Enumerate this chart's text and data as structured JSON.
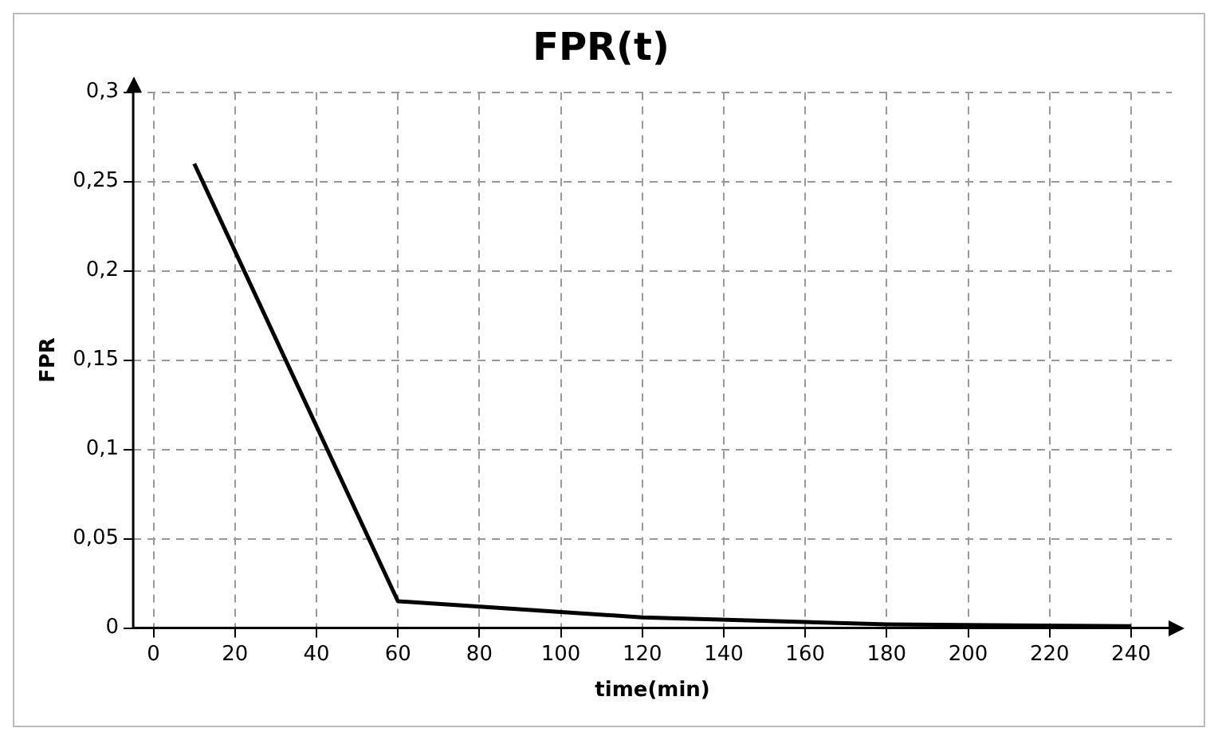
{
  "chart_data": {
    "type": "line",
    "title": "FPR(t)",
    "xlabel": "time(min)",
    "ylabel": "FPR",
    "series": [
      {
        "color": "#000000",
        "x": [
          10,
          60,
          120,
          180,
          240
        ],
        "values": [
          0.26,
          0.015,
          0.006,
          0.002,
          0.001
        ]
      }
    ],
    "xlim": [
      -5,
      250
    ],
    "xticks": [
      0,
      20,
      40,
      60,
      80,
      100,
      120,
      140,
      160,
      180,
      200,
      220,
      240
    ],
    "ylim": [
      0,
      0.3
    ],
    "yticks": [
      0,
      {
        "value": 0.05,
        "label": "0,05"
      },
      {
        "value": 0.1,
        "label": "0,1"
      },
      {
        "value": 0.15,
        "label": "0,15"
      },
      {
        "value": 0.2,
        "label": "0,2"
      },
      {
        "value": 0.25,
        "label": "0,25"
      },
      {
        "value": 0.3,
        "label": "0,3"
      }
    ],
    "grid": true,
    "legend": false,
    "marker": "none",
    "line_style": "solid"
  }
}
